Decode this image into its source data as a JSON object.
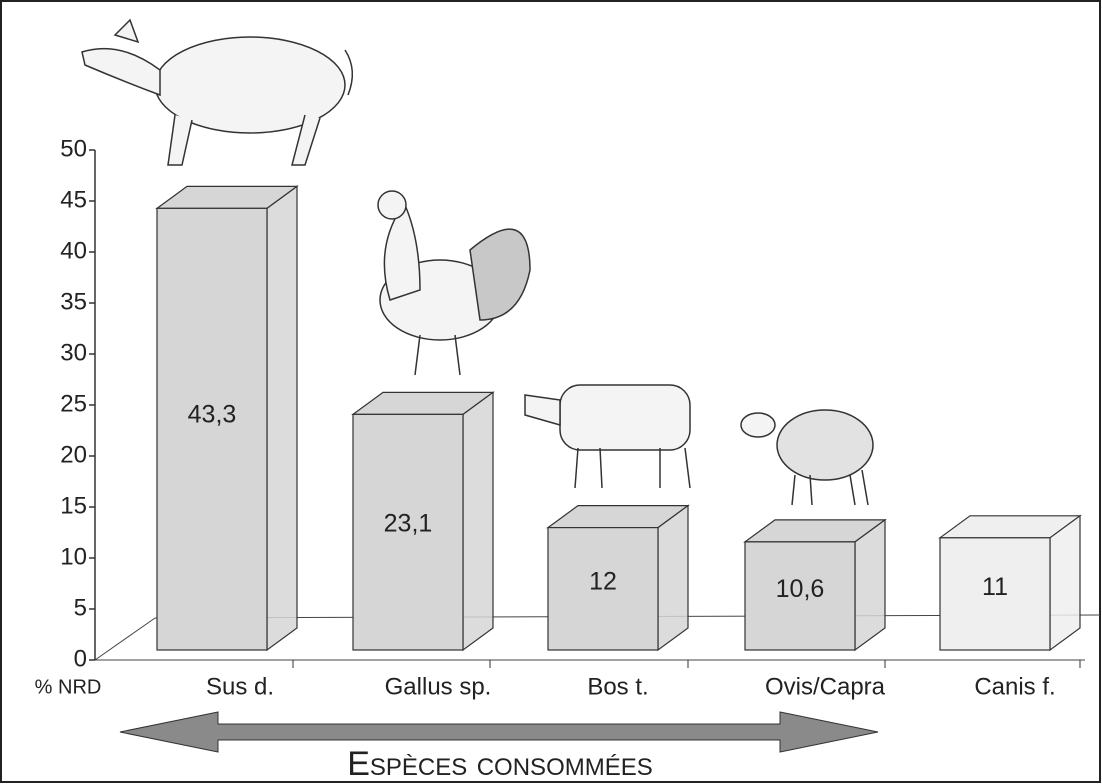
{
  "chart_data": {
    "type": "bar3d",
    "y_axis_label": "% NRD",
    "x_axis_label": "Espèces consommées",
    "categories": [
      "Sus d.",
      "Gallus sp.",
      "Bos t.",
      "Ovis/Capra",
      "Canis f."
    ],
    "values": [
      43.3,
      23.1,
      12,
      10.6,
      11
    ],
    "value_labels": [
      "43,3",
      "23,1",
      "12",
      "10,6",
      "11"
    ],
    "colors": [
      "#d6d6d6",
      "#d6d6d6",
      "#d6d6d6",
      "#d6d6d6",
      "#efefef"
    ],
    "ylim": [
      0,
      50
    ],
    "yticks": [
      0,
      5,
      10,
      15,
      20,
      25,
      30,
      35,
      40,
      45,
      50
    ]
  }
}
